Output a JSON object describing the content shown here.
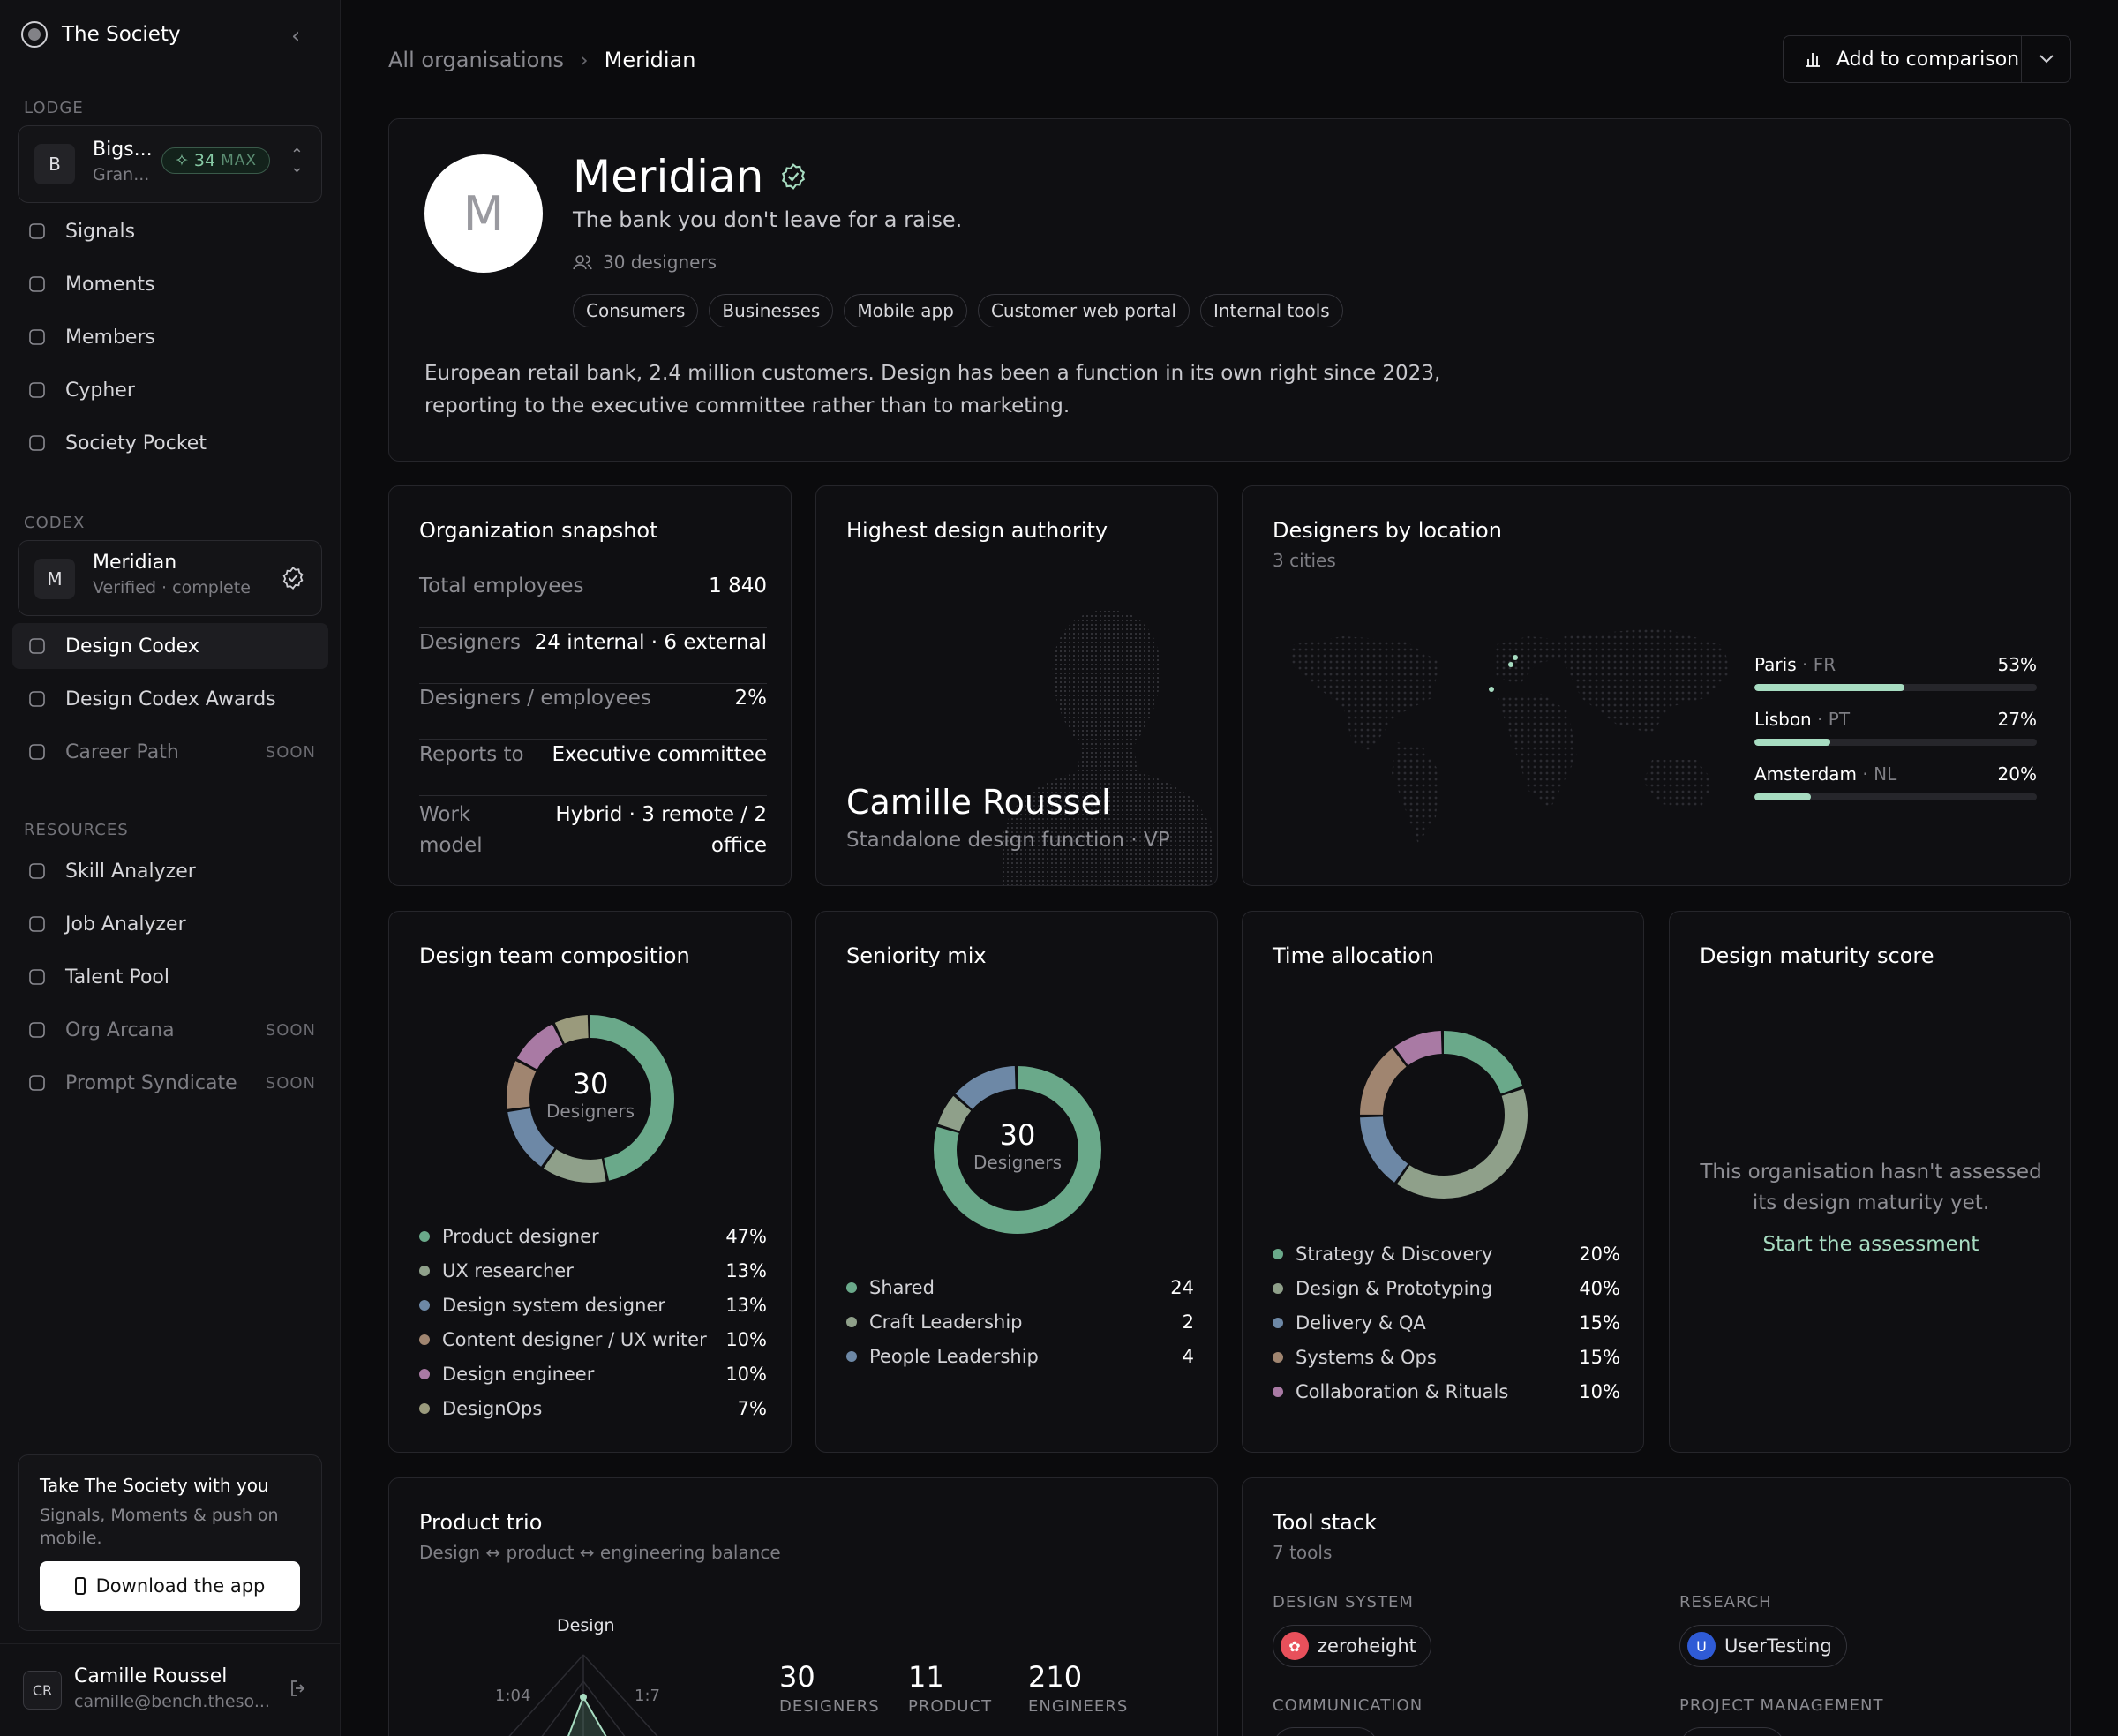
{
  "app": {
    "title": "The Society"
  },
  "sidebar": {
    "lodge_label": "LODGE",
    "lodge": {
      "avatar": "B",
      "name": "Bigs...",
      "sub": "Gran...",
      "badge_value": "34",
      "badge_label": "MAX"
    },
    "lodge_items": [
      {
        "label": "Signals",
        "icon": "signal-icon"
      },
      {
        "label": "Moments",
        "icon": "moments-icon"
      },
      {
        "label": "Members",
        "icon": "members-icon"
      },
      {
        "label": "Cypher",
        "icon": "key-icon"
      },
      {
        "label": "Society Pocket",
        "icon": "gamepad-icon"
      }
    ],
    "codex_label": "CODEX",
    "codex": {
      "avatar": "M",
      "name": "Meridian",
      "sub": "Verified · complete"
    },
    "codex_items": [
      {
        "label": "Design Codex",
        "icon": "book-icon"
      },
      {
        "label": "Design Codex Awards",
        "icon": "award-icon"
      },
      {
        "label": "Career Path",
        "icon": "path-icon",
        "soon": "SOON"
      }
    ],
    "resources_label": "RESOURCES",
    "resource_items": [
      {
        "label": "Skill Analyzer",
        "icon": "scan-icon"
      },
      {
        "label": "Job Analyzer",
        "icon": "scan-icon"
      },
      {
        "label": "Talent Pool",
        "icon": "bar-chart-icon"
      },
      {
        "label": "Org Arcana",
        "icon": "sparkle-icon",
        "soon": "SOON"
      },
      {
        "label": "Prompt Syndicate",
        "icon": "wand-icon",
        "soon": "SOON"
      }
    ],
    "promo": {
      "title": "Take The Society with you",
      "text": "Signals, Moments & push on mobile.",
      "button": "Download the app"
    },
    "user": {
      "initials": "CR",
      "name": "Camille Roussel",
      "email": "camille@bench.theso..."
    }
  },
  "breadcrumb": {
    "root": "All organisations",
    "current": "Meridian"
  },
  "compare_button": "Add to comparison",
  "org": {
    "avatar": "M",
    "name": "Meridian",
    "tagline": "The bank you don't leave for a raise.",
    "designers": "30 designers",
    "tags": [
      "Consumers",
      "Businesses",
      "Mobile app",
      "Customer web portal",
      "Internal tools"
    ],
    "description": "European retail bank, 2.4 million customers. Design has been a function in its own right since 2023, reporting to the executive committee rather than to marketing."
  },
  "snapshot": {
    "title": "Organization snapshot",
    "rows": [
      {
        "k": "Total employees",
        "v": "1 840"
      },
      {
        "k": "Designers",
        "v": "24 internal · 6 external"
      },
      {
        "k": "Designers / employees",
        "v": "2%"
      },
      {
        "k": "Reports to",
        "v": "Executive committee"
      },
      {
        "k": "Work model",
        "v": "Hybrid · 3 remote / 2 office"
      }
    ]
  },
  "authority": {
    "title": "Highest design authority",
    "name": "Camille Roussel",
    "role": "Standalone design function · VP"
  },
  "locations": {
    "title": "Designers by location",
    "sub": "3 cities",
    "items": [
      {
        "city": "Paris",
        "cc": "· FR",
        "pct": 53,
        "label": "53%"
      },
      {
        "city": "Lisbon",
        "cc": "· PT",
        "pct": 27,
        "label": "27%"
      },
      {
        "city": "Amsterdam",
        "cc": "· NL",
        "pct": 20,
        "label": "20%"
      }
    ]
  },
  "composition": {
    "title": "Design team composition",
    "center_value": "30",
    "center_label": "Designers",
    "items": [
      {
        "label": "Product designer",
        "value": "47%",
        "pct": 47,
        "color": "#6aa98a"
      },
      {
        "label": "UX researcher",
        "value": "13%",
        "pct": 13,
        "color": "#8fa08a"
      },
      {
        "label": "Design system designer",
        "value": "13%",
        "pct": 13,
        "color": "#6d88a6"
      },
      {
        "label": "Content designer / UX writer",
        "value": "10%",
        "pct": 10,
        "color": "#a08570"
      },
      {
        "label": "Design engineer",
        "value": "10%",
        "pct": 10,
        "color": "#a97aa4"
      },
      {
        "label": "DesignOps",
        "value": "7%",
        "pct": 7,
        "color": "#9a9a7c"
      }
    ]
  },
  "seniority": {
    "title": "Seniority mix",
    "center_value": "30",
    "center_label": "Designers",
    "items": [
      {
        "label": "Shared",
        "value": "24",
        "n": 24,
        "color": "#6aa98a"
      },
      {
        "label": "Craft Leadership",
        "value": "2",
        "n": 2,
        "color": "#8fa08a"
      },
      {
        "label": "People Leadership",
        "value": "4",
        "n": 4,
        "color": "#6d88a6"
      }
    ]
  },
  "time": {
    "title": "Time allocation",
    "items": [
      {
        "label": "Strategy & Discovery",
        "value": "20%",
        "pct": 20,
        "color": "#6aa98a"
      },
      {
        "label": "Design & Prototyping",
        "value": "40%",
        "pct": 40,
        "color": "#8fa08a"
      },
      {
        "label": "Delivery & QA",
        "value": "15%",
        "pct": 15,
        "color": "#6d88a6"
      },
      {
        "label": "Systems & Ops",
        "value": "15%",
        "pct": 15,
        "color": "#a08570"
      },
      {
        "label": "Collaboration & Rituals",
        "value": "10%",
        "pct": 10,
        "color": "#a97aa4"
      }
    ]
  },
  "maturity": {
    "title": "Design maturity score",
    "text": "This organisation hasn't assessed its design maturity yet.",
    "link": "Start the assessment"
  },
  "trio": {
    "title": "Product trio",
    "sub": "Design ↔ product ↔ engineering balance",
    "radar_label": "Design",
    "ratio_left": "1:04",
    "ratio_right": "1:7",
    "stats": [
      {
        "n": "30",
        "l": "DESIGNERS"
      },
      {
        "n": "11",
        "l": "PRODUCT"
      },
      {
        "n": "210",
        "l": "ENGINEERS"
      }
    ]
  },
  "tools": {
    "title": "Tool stack",
    "sub": "7 tools",
    "groups": [
      {
        "heading": "DESIGN SYSTEM",
        "tool": "zeroheight",
        "icon": "zeroheight-logo-icon",
        "color": "#e8505b"
      },
      {
        "heading": "RESEARCH",
        "tool": "UserTesting",
        "icon": "usertesting-logo-icon",
        "color": "#2f5bd6"
      },
      {
        "heading": "COMMUNICATION"
      },
      {
        "heading": "PROJECT MANAGEMENT"
      }
    ]
  },
  "colors": {
    "accent": "#a7dcc1",
    "background": "#0b0b0d",
    "card_border": "#26262b"
  }
}
